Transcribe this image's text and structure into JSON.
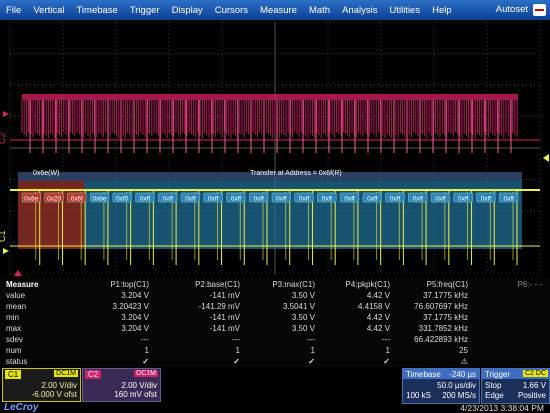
{
  "menu": {
    "items": [
      "File",
      "Vertical",
      "Timebase",
      "Trigger",
      "Display",
      "Cursors",
      "Measure",
      "Math",
      "Analysis",
      "Utilities",
      "Help"
    ],
    "autoset": "Autoset"
  },
  "waveform": {
    "c2_label": "C2",
    "c1_label": "C1",
    "decode_left": "0x6e(W)",
    "decode_center": "Transfer at Address = 0x6f(R)",
    "bytes": [
      "0x6e",
      "0x20",
      "0x6f",
      "0xbe",
      "0xf0",
      "0xff",
      "0xff",
      "0xff",
      "0xff",
      "0xff",
      "0xff",
      "0xff",
      "0xff",
      "0xff",
      "0xff",
      "0xff",
      "0xff",
      "0xff",
      "0xff",
      "0xff",
      "0xff",
      "0xff"
    ],
    "colors": {
      "c1": "#f0f040",
      "c2": "#d8206a",
      "decode_fill": "#1f6f97",
      "address_fill": "#b33a2f"
    }
  },
  "measure": {
    "title": "Measure",
    "headers": [
      "P1:top(C1)",
      "P2:base(C1)",
      "P3:max(C1)",
      "P4:pkpk(C1)",
      "P5:freq(C1)"
    ],
    "p6": "P6:- - -",
    "rows": [
      {
        "label": "value",
        "cells": [
          "3.204 V",
          "-141 mV",
          "3.50 V",
          "4.42 V",
          "37.1775 kHz"
        ]
      },
      {
        "label": "mean",
        "cells": [
          "3.20423 V",
          "-141.29 mV",
          "3.5041 V",
          "4.4158 V",
          "76.607697 kHz"
        ]
      },
      {
        "label": "min",
        "cells": [
          "3.204 V",
          "-141 mV",
          "3.50 V",
          "4.42 V",
          "37.1775 kHz"
        ]
      },
      {
        "label": "max",
        "cells": [
          "3.204 V",
          "-141 mV",
          "3.50 V",
          "4.42 V",
          "331.7852 kHz"
        ]
      },
      {
        "label": "sdev",
        "cells": [
          "---",
          "---",
          "---",
          "---",
          "66.422893 kHz"
        ]
      },
      {
        "label": "num",
        "cells": [
          "1",
          "1",
          "1",
          "1",
          "25"
        ]
      },
      {
        "label": "status",
        "cells": [
          "✓",
          "✓",
          "✓",
          "✓",
          "⚠"
        ]
      }
    ]
  },
  "channels": {
    "c1": {
      "tag": "C1",
      "coupling": "DC1M",
      "vdiv": "2.00 V/div",
      "offset": "-6.000 V ofst"
    },
    "c2": {
      "tag": "C2",
      "coupling": "DC1M",
      "vdiv": "2.00 V/div",
      "offset": "160 mV ofst"
    }
  },
  "timebase": {
    "label": "Timebase",
    "delay": "-240 µs",
    "tdiv": "50.0 µs/div",
    "samples": "100 kS",
    "rate": "200 MS/s"
  },
  "trigger": {
    "label": "Trigger",
    "tag": "C2 DC",
    "mode": "Stop",
    "level": "1.66 V",
    "type": "Edge",
    "slope": "Positive"
  },
  "brand": "LeCroy",
  "datetime": "4/23/2013 3:38:04 PM"
}
